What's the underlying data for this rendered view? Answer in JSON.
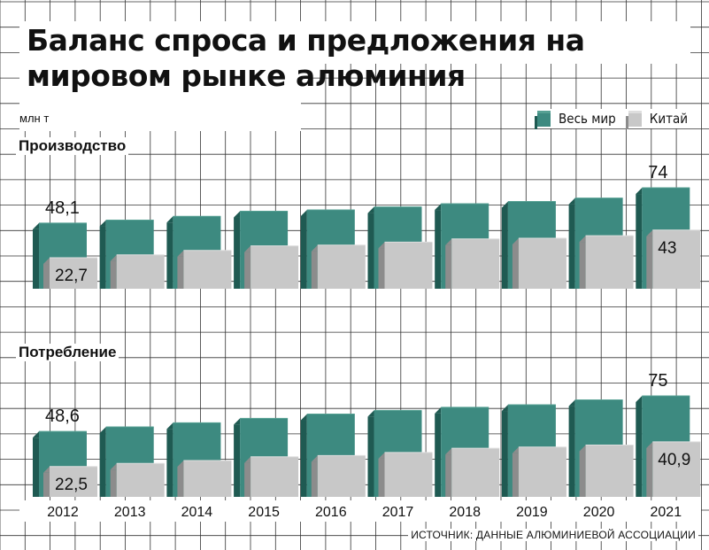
{
  "title": "Баланс спроса и предложения на мировом рынке алюминия",
  "unit": "млн т",
  "source": "ИСТОЧНИК: ДАННЫЕ АЛЮМИНИЕВОЙ АССОЦИАЦИИ",
  "legend": [
    {
      "name": "Весь мир",
      "color": "#3d8a80"
    },
    {
      "name": "Китай",
      "color": "#c8c8c8"
    }
  ],
  "colors": {
    "world_front": "#3d8a80",
    "world_side": "#1f5a52",
    "world_top": "#56a093",
    "china_front": "#c8c8c8",
    "china_side": "#8c8c8c",
    "china_top": "#dedede"
  },
  "chart_data": [
    {
      "type": "bar",
      "section_label": "Производство",
      "categories": [
        "2012",
        "2013",
        "2014",
        "2015",
        "2016",
        "2017",
        "2018",
        "2019",
        "2020",
        "2021"
      ],
      "series": [
        {
          "name": "Весь мир",
          "values": [
            48.1,
            50.3,
            53.1,
            56.8,
            57.8,
            60.0,
            62.3,
            64.0,
            66.5,
            74
          ]
        },
        {
          "name": "Китай",
          "values": [
            22.7,
            24.8,
            28.1,
            31.4,
            32.0,
            34.2,
            36.5,
            37.0,
            38.9,
            43
          ]
        }
      ],
      "data_labels": {
        "2012": {
          "world": "48,1",
          "china": "22,7"
        },
        "2021": {
          "world": "74",
          "china": "43"
        }
      }
    },
    {
      "type": "bar",
      "section_label": "Потребление",
      "categories": [
        "2012",
        "2013",
        "2014",
        "2015",
        "2016",
        "2017",
        "2018",
        "2019",
        "2020",
        "2021"
      ],
      "series": [
        {
          "name": "Весь мир",
          "values": [
            48.6,
            52.0,
            55.0,
            58.3,
            61.5,
            64.2,
            66.5,
            68.4,
            72.0,
            75
          ]
        },
        {
          "name": "Китай",
          "values": [
            22.5,
            24.8,
            27.0,
            29.8,
            30.7,
            33.0,
            36.1,
            37.0,
            38.5,
            40.9
          ]
        }
      ],
      "data_labels": {
        "2012": {
          "world": "48,6",
          "china": "22,5"
        },
        "2021": {
          "world": "75",
          "china": "40,9"
        }
      }
    }
  ]
}
